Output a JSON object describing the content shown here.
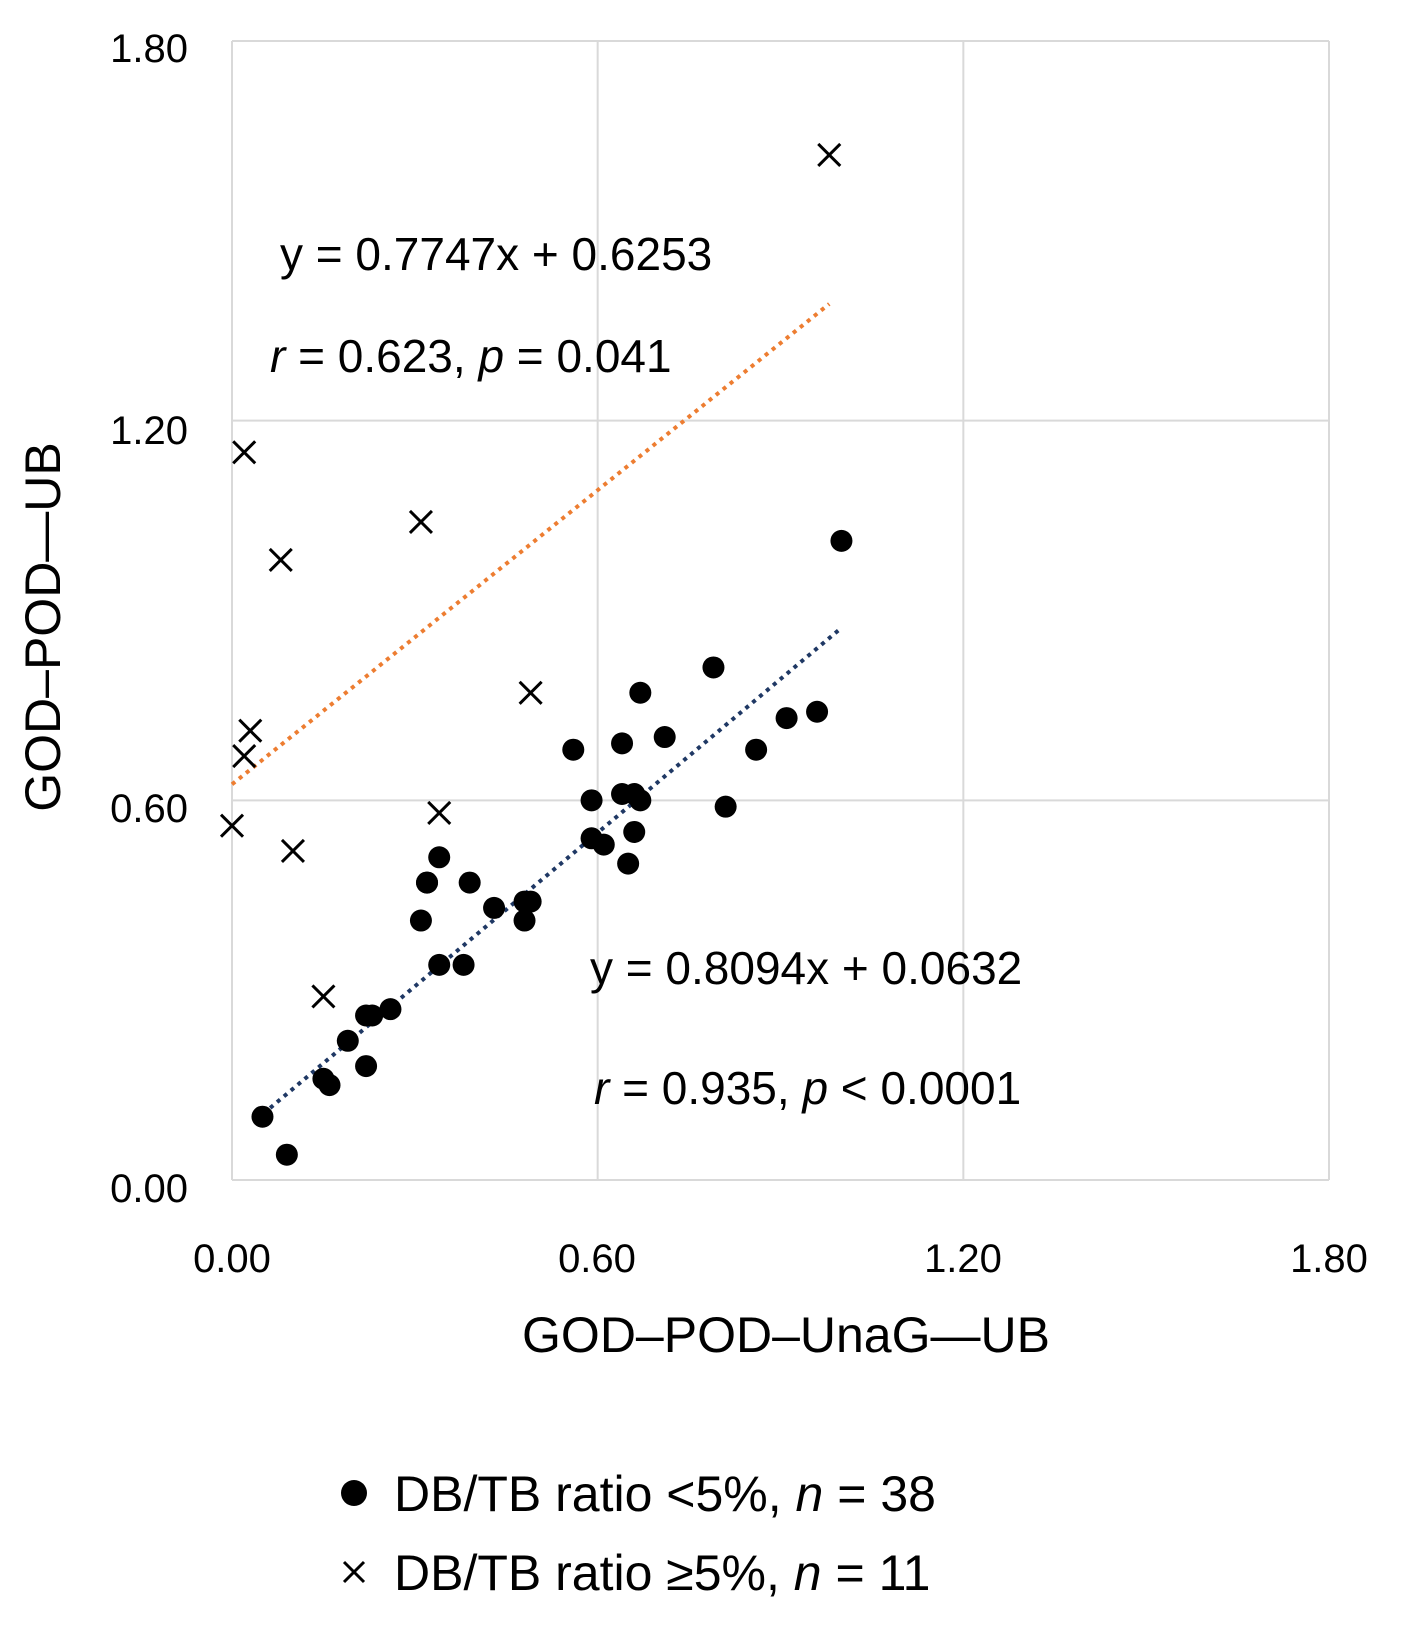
{
  "chart_data": {
    "type": "scatter",
    "xlabel": "GOD–POD–UnaG—UB",
    "ylabel": "GOD–POD—UB",
    "xlim": [
      0,
      1.8
    ],
    "ylim": [
      0,
      1.8
    ],
    "x_ticks": [
      "0.00",
      "0.60",
      "1.20",
      "1.80"
    ],
    "y_ticks": [
      "0.00",
      "0.60",
      "1.20",
      "1.80"
    ],
    "grid": true,
    "legend_position": "bottom",
    "series": [
      {
        "name": "DB/TB ratio <5%, n = 38",
        "legend_prefix": "DB/TB ratio <5%, ",
        "legend_n": "n",
        "legend_suffix": " = 38",
        "marker": "circle",
        "trend_color": "#1f3864",
        "points": [
          [
            0.05,
            0.1
          ],
          [
            0.09,
            0.04
          ],
          [
            0.15,
            0.16
          ],
          [
            0.16,
            0.15
          ],
          [
            0.19,
            0.22
          ],
          [
            0.22,
            0.26
          ],
          [
            0.23,
            0.26
          ],
          [
            0.22,
            0.18
          ],
          [
            0.26,
            0.27
          ],
          [
            0.31,
            0.41
          ],
          [
            0.32,
            0.47
          ],
          [
            0.32,
            0.47
          ],
          [
            0.34,
            0.51
          ],
          [
            0.34,
            0.34
          ],
          [
            0.38,
            0.34
          ],
          [
            0.39,
            0.47
          ],
          [
            0.43,
            0.43
          ],
          [
            0.48,
            0.44
          ],
          [
            0.49,
            0.44
          ],
          [
            0.48,
            0.41
          ],
          [
            0.56,
            0.68
          ],
          [
            0.59,
            0.6
          ],
          [
            0.59,
            0.54
          ],
          [
            0.61,
            0.53
          ],
          [
            0.64,
            0.69
          ],
          [
            0.64,
            0.61
          ],
          [
            0.65,
            0.5
          ],
          [
            0.66,
            0.55
          ],
          [
            0.66,
            0.61
          ],
          [
            0.67,
            0.6
          ],
          [
            0.67,
            0.77
          ],
          [
            0.71,
            0.7
          ],
          [
            0.79,
            0.81
          ],
          [
            0.81,
            0.59
          ],
          [
            0.86,
            0.68
          ],
          [
            0.91,
            0.73
          ],
          [
            0.96,
            0.74
          ],
          [
            1.0,
            1.01
          ]
        ],
        "trendline": {
          "slope": 0.8094,
          "intercept": 0.0632,
          "x_range": [
            0.04,
            1.0
          ]
        },
        "equation": "y = 0.8094x + 0.0632",
        "stat_r_label": "r",
        "stat_r_value": " = 0.935, ",
        "stat_p_label": "p",
        "stat_p_value": " < 0.0001"
      },
      {
        "name": "DB/TB ratio ≥5%, n = 11",
        "legend_prefix": "DB/TB ratio ≥5%, ",
        "legend_n": "n",
        "legend_suffix": " = 11",
        "marker": "x",
        "trend_color": "#ed7d31",
        "points": [
          [
            0.98,
            1.62
          ],
          [
            0.02,
            1.15
          ],
          [
            0.31,
            1.04
          ],
          [
            0.08,
            0.98
          ],
          [
            0.49,
            0.77
          ],
          [
            0.03,
            0.71
          ],
          [
            0.02,
            0.67
          ],
          [
            0.0,
            0.56
          ],
          [
            0.34,
            0.58
          ],
          [
            0.1,
            0.52
          ],
          [
            0.15,
            0.29
          ]
        ],
        "trendline": {
          "slope": 0.7747,
          "intercept": 0.6253,
          "x_range": [
            0.0,
            0.98
          ]
        },
        "equation": "y = 0.7747x + 0.6253",
        "stat_r_label": "r",
        "stat_r_value": " = 0.623, ",
        "stat_p_label": "p",
        "stat_p_value": " = 0.041"
      }
    ]
  }
}
